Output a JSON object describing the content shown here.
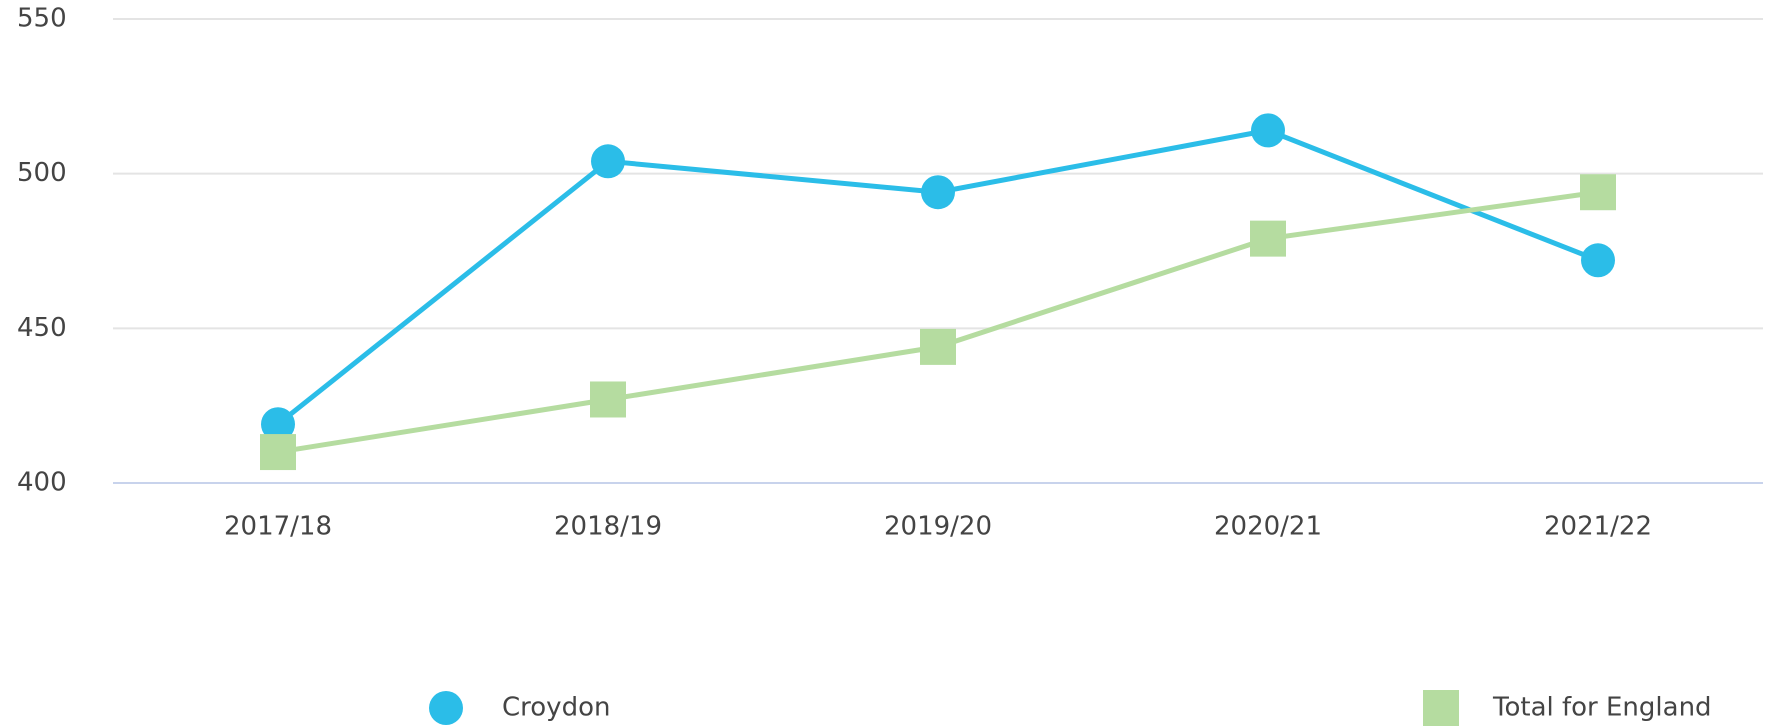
{
  "chart_data": {
    "type": "line",
    "categories": [
      "2017/18",
      "2018/19",
      "2019/20",
      "2020/21",
      "2021/22"
    ],
    "series": [
      {
        "name": "Croydon",
        "color": "#2bbde8",
        "marker": "circle",
        "values": [
          419,
          504,
          494,
          514,
          472
        ]
      },
      {
        "name": "Total for England",
        "color": "#b5dca0",
        "marker": "square",
        "values": [
          410,
          427,
          444,
          479,
          494
        ]
      }
    ],
    "ylim": [
      400,
      550
    ],
    "yticks": [
      400,
      450,
      500,
      550
    ],
    "grid": true,
    "legend": "bottom"
  }
}
